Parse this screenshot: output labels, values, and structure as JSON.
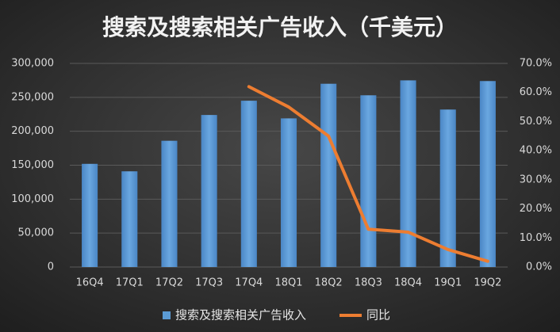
{
  "chart_data": {
    "type": "bar-line",
    "title": "搜索及搜索相关广告收入（千美元）",
    "categories": [
      "16Q4",
      "17Q1",
      "17Q2",
      "17Q3",
      "17Q4",
      "18Q1",
      "18Q2",
      "18Q3",
      "18Q4",
      "19Q1",
      "19Q2"
    ],
    "series": [
      {
        "name": "搜索及搜索相关广告收入",
        "type": "bar",
        "color": "#5b9bd5",
        "values": [
          152000,
          141000,
          186000,
          224000,
          245000,
          219000,
          270000,
          253000,
          275000,
          232000,
          274000
        ]
      },
      {
        "name": "同比",
        "type": "line",
        "axis": "y2",
        "color": "#ed7d31",
        "values": [
          null,
          null,
          null,
          null,
          62,
          55,
          45,
          13,
          12,
          6,
          2
        ]
      }
    ],
    "ylim": [
      0,
      300000
    ],
    "yticks": [
      0,
      {
        "value": 50000,
        "label": "50,000"
      },
      {
        "value": 100000,
        "label": "100,000"
      },
      {
        "value": 150000,
        "label": "150,000"
      },
      {
        "value": 200000,
        "label": "200,000"
      },
      {
        "value": 250000,
        "label": "250,000"
      },
      {
        "value": 300000,
        "label": "300,000"
      }
    ],
    "y2lim": [
      0,
      70
    ],
    "y2ticks": [
      {
        "value": 0,
        "label": "0.0%"
      },
      {
        "value": 10,
        "label": "10.0%"
      },
      {
        "value": 20,
        "label": "20.0%"
      },
      {
        "value": 30,
        "label": "30.0%"
      },
      {
        "value": 40,
        "label": "40.0%"
      },
      {
        "value": 50,
        "label": "50.0%"
      },
      {
        "value": 60,
        "label": "60.0%"
      },
      {
        "value": 70,
        "label": "70.0%"
      }
    ],
    "grid": true,
    "legend": "bottom"
  }
}
